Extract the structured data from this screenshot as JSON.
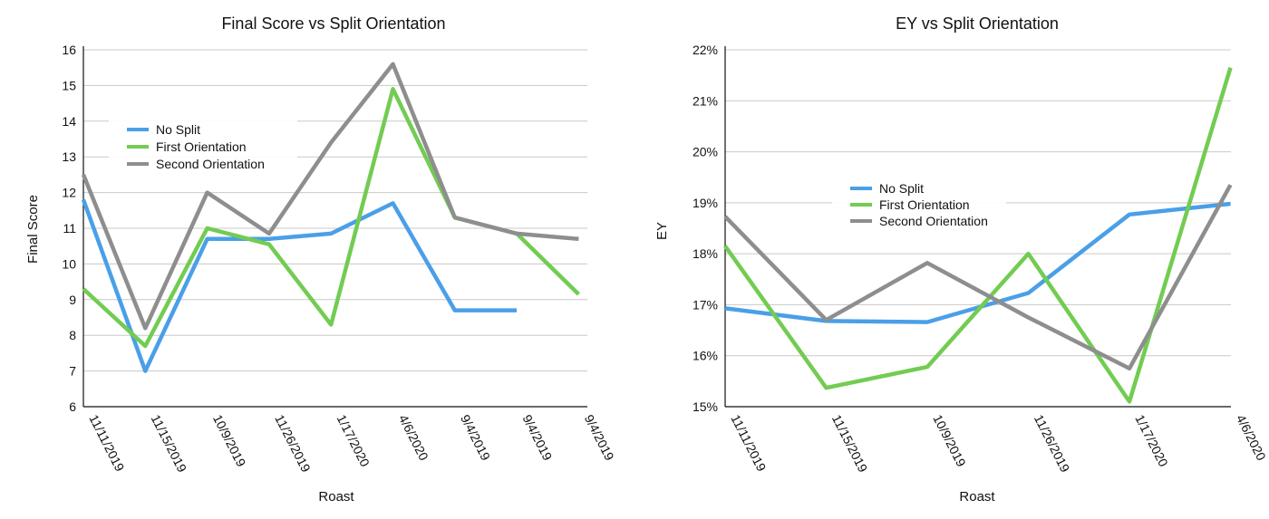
{
  "chart_data": [
    {
      "type": "line",
      "title": "Final Score vs Split Orientation",
      "xlabel": "Roast",
      "ylabel": "Final Score",
      "ylim": [
        6,
        16
      ],
      "yticks": [
        "6",
        "7",
        "8",
        "9",
        "10",
        "11",
        "12",
        "13",
        "14",
        "15",
        "16"
      ],
      "categories": [
        "11/11/2019",
        "11/15/2019",
        "10/9/2019",
        "11/26/2019",
        "1/17/2020",
        "4/6/2020",
        "9/4/2019",
        "9/4/2019",
        "9/4/2019"
      ],
      "grid": true,
      "legend_position": "upper-left",
      "series": [
        {
          "name": "No Split",
          "color": "#4a9fe8",
          "values": [
            11.8,
            7.0,
            10.7,
            10.7,
            10.85,
            11.7,
            8.7,
            8.7,
            null
          ]
        },
        {
          "name": "First Orientation",
          "color": "#72cc52",
          "values": [
            9.3,
            7.7,
            11.0,
            10.55,
            8.3,
            14.9,
            11.3,
            10.85,
            9.15
          ]
        },
        {
          "name": "Second Orientation",
          "color": "#8e8e8e",
          "values": [
            12.5,
            8.2,
            12.0,
            10.85,
            13.4,
            15.6,
            11.3,
            10.85,
            10.7
          ]
        }
      ]
    },
    {
      "type": "line",
      "title": "EY vs Split Orientation",
      "xlabel": "Roast",
      "ylabel": "EY",
      "ylim": [
        15,
        22
      ],
      "yticks": [
        "15%",
        "16%",
        "17%",
        "18%",
        "19%",
        "20%",
        "21%",
        "22%"
      ],
      "categories": [
        "11/11/2019",
        "11/15/2019",
        "10/9/2019",
        "11/26/2019",
        "1/17/2020",
        "4/6/2020"
      ],
      "grid": true,
      "legend_position": "center",
      "series": [
        {
          "name": "No Split",
          "color": "#4a9fe8",
          "values": [
            16.93,
            16.68,
            16.66,
            17.23,
            18.77,
            18.98
          ]
        },
        {
          "name": "First Orientation",
          "color": "#72cc52",
          "values": [
            18.15,
            15.37,
            15.78,
            18.0,
            15.1,
            21.65
          ]
        },
        {
          "name": "Second Orientation",
          "color": "#8e8e8e",
          "values": [
            18.73,
            16.7,
            17.82,
            16.75,
            15.75,
            19.35
          ]
        }
      ]
    }
  ]
}
